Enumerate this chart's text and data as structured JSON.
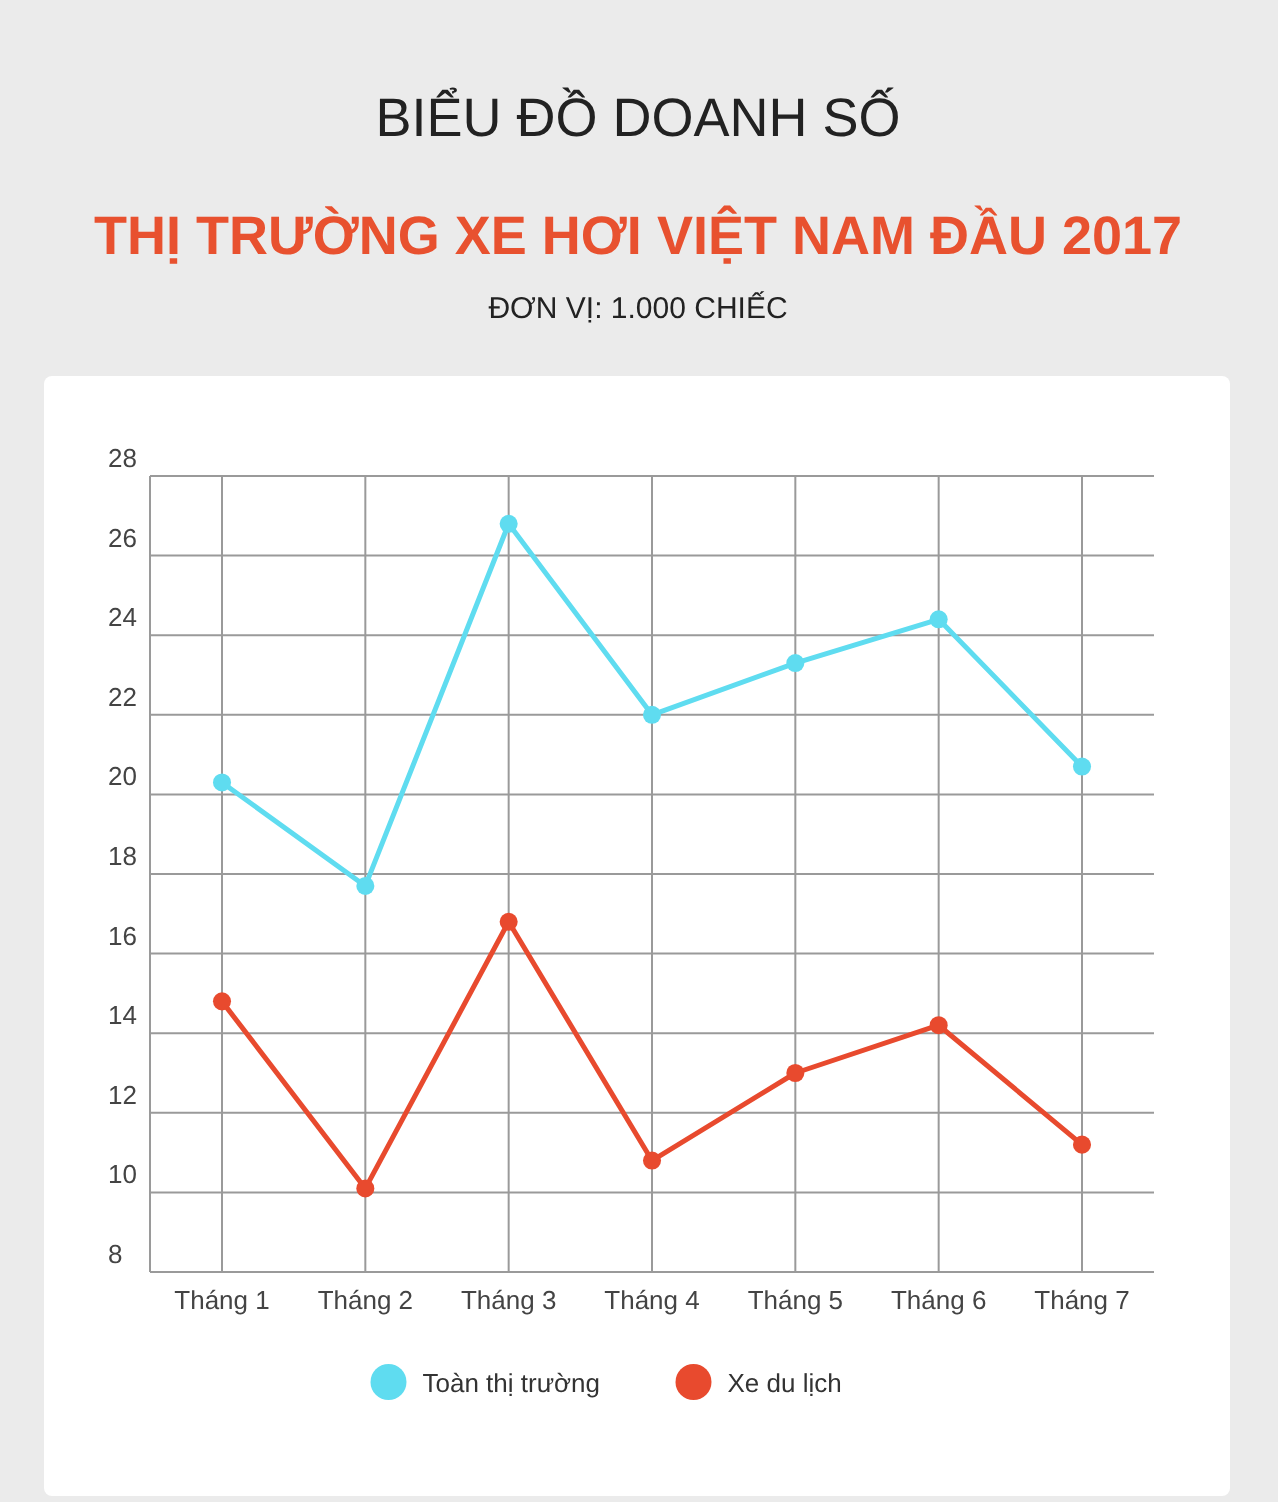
{
  "chart_data": {
    "type": "line",
    "title": "BIỂU ĐỒ DOANH SỐ",
    "subtitle": "THỊ TRƯỜNG XE HƠI VIỆT NAM ĐẦU 2017",
    "annotations": [
      "ĐƠN VỊ: 1.000 CHIẾC"
    ],
    "categories": [
      "Tháng 1",
      "Tháng 2",
      "Tháng 3",
      "Tháng 4",
      "Tháng 5",
      "Tháng 6",
      "Tháng 7"
    ],
    "series": [
      {
        "name": "Toàn thị trường",
        "color": "#5fdcf0",
        "values": [
          20.3,
          17.7,
          26.8,
          22.0,
          23.3,
          24.4,
          20.7
        ]
      },
      {
        "name": "Xe du lịch",
        "color": "#e84a2e",
        "values": [
          14.8,
          10.1,
          16.8,
          10.8,
          13.0,
          14.2,
          11.2
        ]
      }
    ],
    "ylim": [
      8,
      28
    ],
    "yticks": [
      8,
      10,
      12,
      14,
      16,
      18,
      20,
      22,
      24,
      26,
      28
    ],
    "grid": true,
    "legend": "bottom",
    "marker": "circle",
    "line_style": "solid"
  }
}
